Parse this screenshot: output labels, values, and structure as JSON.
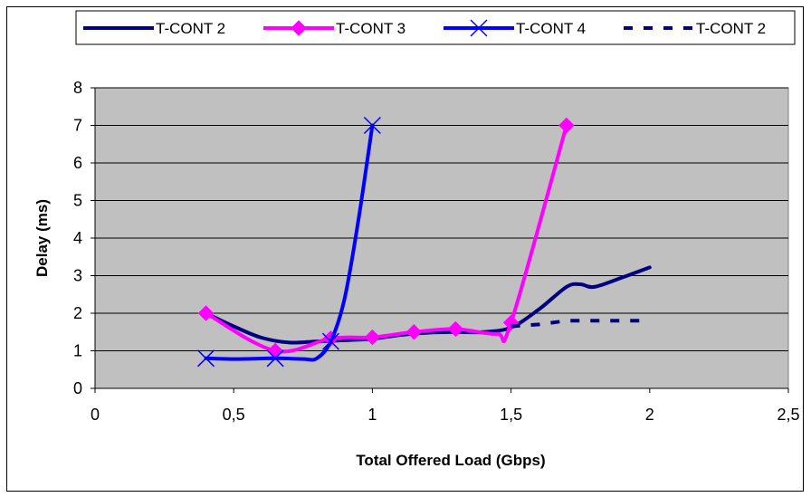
{
  "chart_data": {
    "type": "line",
    "title": "",
    "xlabel": "Total Offered Load (Gbps)",
    "ylabel": "Delay (ms)",
    "xlim": [
      0,
      2.5
    ],
    "ylim": [
      0,
      8
    ],
    "x_ticks": [
      "0",
      "0,5",
      "1",
      "1,5",
      "2",
      "2,5"
    ],
    "y_ticks": [
      "0",
      "1",
      "2",
      "3",
      "4",
      "5",
      "6",
      "7",
      "8"
    ],
    "x_tick_values": [
      0,
      0.5,
      1,
      1.5,
      2,
      2.5
    ],
    "y_tick_values": [
      0,
      1,
      2,
      3,
      4,
      5,
      6,
      7,
      8
    ],
    "grid": "horizontal",
    "plot_background": "#c0c0c0",
    "legend_position": "top",
    "series": [
      {
        "name": "T-CONT 2",
        "color": "#000080",
        "style": "solid",
        "marker": "none",
        "points": [
          [
            0.4,
            2.0
          ],
          [
            0.5,
            1.65
          ],
          [
            0.6,
            1.35
          ],
          [
            0.7,
            1.22
          ],
          [
            0.8,
            1.25
          ],
          [
            0.9,
            1.28
          ],
          [
            1.0,
            1.32
          ],
          [
            1.1,
            1.42
          ],
          [
            1.2,
            1.48
          ],
          [
            1.3,
            1.5
          ],
          [
            1.4,
            1.5
          ],
          [
            1.5,
            1.62
          ],
          [
            1.6,
            2.1
          ],
          [
            1.7,
            2.7
          ],
          [
            1.75,
            2.77
          ],
          [
            1.8,
            2.7
          ],
          [
            1.9,
            2.95
          ],
          [
            2.0,
            3.22
          ]
        ]
      },
      {
        "name": "T-CONT 3",
        "color": "#ff00ff",
        "style": "solid",
        "marker": "diamond",
        "points": [
          [
            0.4,
            2.0
          ],
          [
            0.65,
            1.0
          ],
          [
            0.85,
            1.33
          ],
          [
            1.0,
            1.36
          ],
          [
            1.15,
            1.5
          ],
          [
            1.3,
            1.58
          ],
          [
            1.45,
            1.45
          ],
          [
            1.5,
            1.75
          ],
          [
            1.7,
            7.0
          ]
        ],
        "marked": [
          [
            0.4,
            2.0
          ],
          [
            0.65,
            1.0
          ],
          [
            0.85,
            1.33
          ],
          [
            1.0,
            1.36
          ],
          [
            1.15,
            1.5
          ],
          [
            1.3,
            1.58
          ],
          [
            1.5,
            1.75
          ],
          [
            1.7,
            7.0
          ]
        ]
      },
      {
        "name": "T-CONT 4",
        "color": "#0000ff",
        "style": "solid",
        "marker": "x",
        "points": [
          [
            0.4,
            0.8
          ],
          [
            0.5,
            0.78
          ],
          [
            0.65,
            0.8
          ],
          [
            0.75,
            0.78
          ],
          [
            0.8,
            0.8
          ],
          [
            0.85,
            1.25
          ],
          [
            0.9,
            2.4
          ],
          [
            0.95,
            4.5
          ],
          [
            1.0,
            7.0
          ]
        ],
        "marked": [
          [
            0.4,
            0.8
          ],
          [
            0.65,
            0.8
          ],
          [
            0.85,
            1.25
          ],
          [
            1.0,
            7.0
          ]
        ]
      },
      {
        "name": "T-CONT 2",
        "color": "#000080",
        "style": "dashed",
        "marker": "none",
        "points": [
          [
            1.5,
            1.65
          ],
          [
            1.6,
            1.7
          ],
          [
            1.7,
            1.8
          ],
          [
            2.0,
            1.8
          ]
        ]
      }
    ]
  }
}
